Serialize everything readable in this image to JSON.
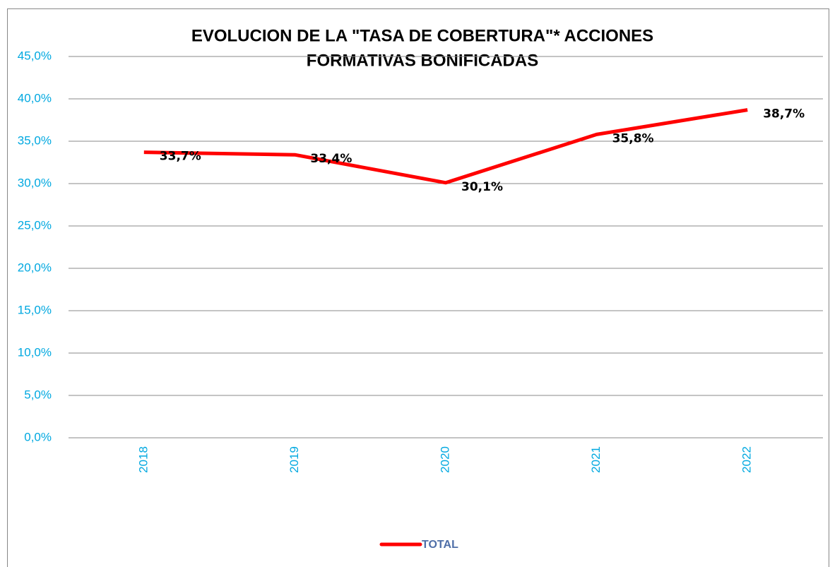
{
  "chart_data": {
    "type": "line",
    "title": [
      "EVOLUCION DE LA \"TASA DE COBERTURA\"* ACCIONES",
      "FORMATIVAS BONIFICADAS"
    ],
    "categories": [
      "2018",
      "2019",
      "2020",
      "2021",
      "2022"
    ],
    "series": [
      {
        "name": "TOTAL",
        "color": "#ff0000",
        "values": [
          33.7,
          33.4,
          30.1,
          35.8,
          38.7
        ],
        "value_labels": [
          "33,7%",
          "33,4%",
          "30,1%",
          "35,8%",
          "38,7%"
        ]
      }
    ],
    "ylim": [
      0,
      45
    ],
    "yticks": [
      {
        "value": 0,
        "label": "0,0%"
      },
      {
        "value": 5,
        "label": "5,0%"
      },
      {
        "value": 10,
        "label": "10,0%"
      },
      {
        "value": 15,
        "label": "15,0%"
      },
      {
        "value": 20,
        "label": "20,0%"
      },
      {
        "value": 25,
        "label": "25,0%"
      },
      {
        "value": 30,
        "label": "30,0%"
      },
      {
        "value": 35,
        "label": "35,0%"
      },
      {
        "value": 40,
        "label": "40,0%"
      },
      {
        "value": 45,
        "label": "45,0%"
      }
    ],
    "grid": true,
    "legend": "bottom"
  }
}
